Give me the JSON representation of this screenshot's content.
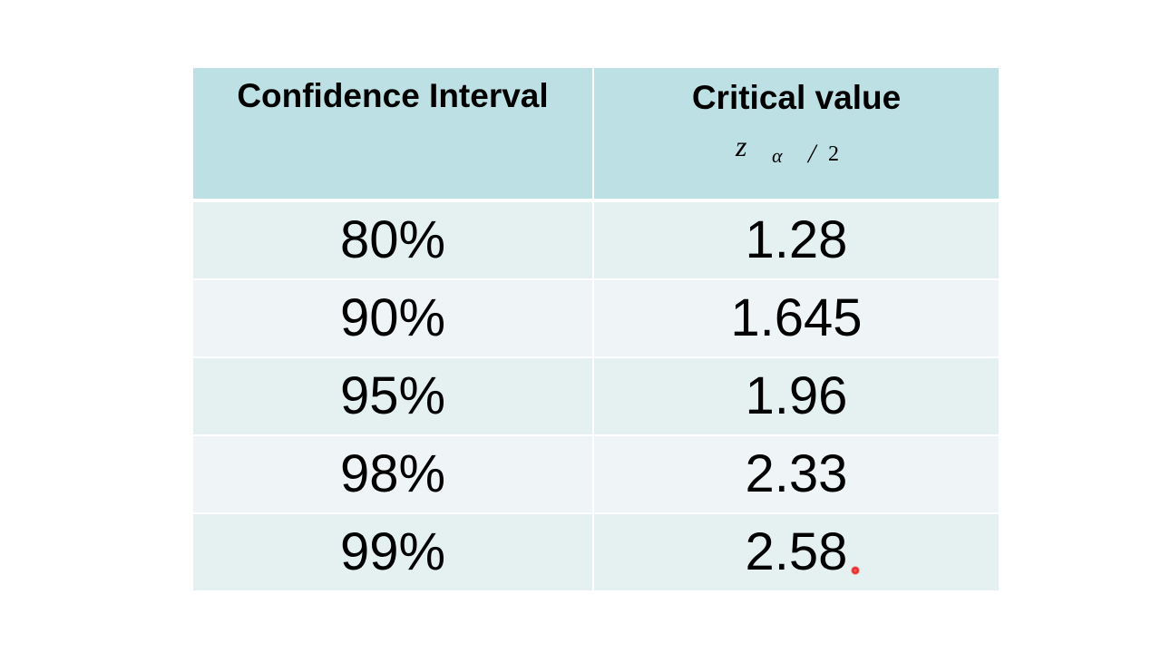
{
  "table": {
    "header": {
      "col1": "Confidence Interval",
      "col2": "Critical value",
      "formula": {
        "z": "z",
        "alpha": "α",
        "slash": "/",
        "two": "2"
      },
      "background": "#bde0e4"
    },
    "rows": [
      {
        "ci": "80%",
        "cv": "1.28"
      },
      {
        "ci": "90%",
        "cv": "1.645"
      },
      {
        "ci": "95%",
        "cv": "1.96"
      },
      {
        "ci": "98%",
        "cv": "2.33"
      },
      {
        "ci": "99%",
        "cv": "2.58"
      }
    ],
    "row_colors": {
      "odd": "#e5f1f1",
      "even": "#eff5f7"
    }
  },
  "pointer": {
    "color": "#e02020"
  }
}
